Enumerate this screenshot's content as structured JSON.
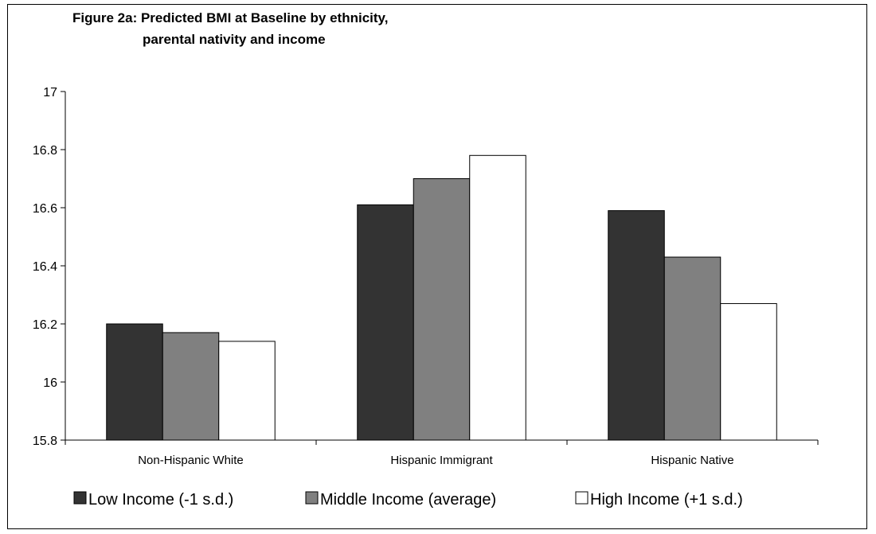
{
  "chart_data": {
    "type": "bar",
    "title_line1": "Figure 2a: Predicted BMI at Baseline by ethnicity,",
    "title_line2": "parental nativity and income",
    "xlabel": "",
    "ylabel": "",
    "categories": [
      "Non-Hispanic White",
      "Hispanic Immigrant",
      "Hispanic Native"
    ],
    "ylim": [
      15.8,
      17
    ],
    "yticks": [
      15.8,
      16,
      16.2,
      16.4,
      16.6,
      16.8,
      17
    ],
    "ytick_labels": [
      "15.8",
      "16",
      "16.2",
      "16.4",
      "16.6",
      "16.8",
      "17"
    ],
    "grid": false,
    "legend_position": "bottom",
    "series": [
      {
        "name": "Low Income (-1 s.d.)",
        "color": "#333333",
        "values": [
          16.2,
          16.61,
          16.59
        ]
      },
      {
        "name": "Middle Income (average)",
        "color": "#808080",
        "values": [
          16.17,
          16.7,
          16.43
        ]
      },
      {
        "name": "High Income (+1 s.d.)",
        "color": "#ffffff",
        "values": [
          16.14,
          16.78,
          16.27
        ]
      }
    ]
  }
}
